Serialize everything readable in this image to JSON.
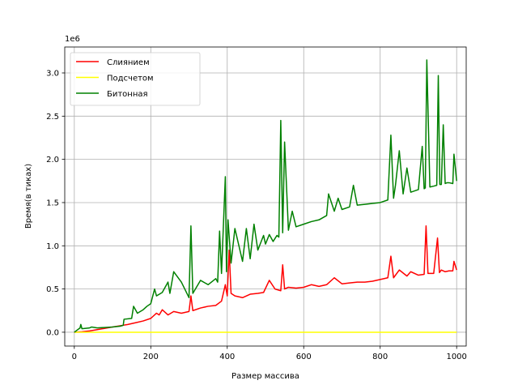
{
  "chart_data": {
    "type": "line",
    "title": "",
    "xlabel": "Размер массива",
    "ylabel": "Время(в тиках)",
    "y_offset_label": "1e6",
    "y_multiplier": 1000000,
    "xlim": [
      -25,
      1025
    ],
    "ylim": [
      -0.16,
      3.3
    ],
    "x_ticks": [
      0,
      200,
      400,
      600,
      800,
      1000
    ],
    "x_tick_labels": [
      "0",
      "200",
      "400",
      "600",
      "800",
      "1000"
    ],
    "y_ticks": [
      0.0,
      0.5,
      1.0,
      1.5,
      2.0,
      2.5,
      3.0
    ],
    "y_tick_labels": [
      "0.0",
      "0.5",
      "1.0",
      "1.5",
      "2.0",
      "2.5",
      "3.0"
    ],
    "grid": true,
    "legend_position": "upper-left",
    "series": [
      {
        "name": "Слиянием",
        "color": "#ff0000",
        "x": [
          0,
          20,
          40,
          60,
          80,
          100,
          120,
          140,
          160,
          180,
          200,
          215,
          222,
          230,
          245,
          260,
          280,
          300,
          305,
          310,
          330,
          350,
          370,
          385,
          395,
          400,
          405,
          410,
          420,
          440,
          460,
          480,
          495,
          510,
          525,
          540,
          545,
          550,
          560,
          580,
          600,
          620,
          640,
          660,
          680,
          700,
          720,
          740,
          760,
          780,
          800,
          820,
          828,
          835,
          850,
          870,
          880,
          900,
          915,
          920,
          925,
          940,
          950,
          955,
          960,
          970,
          980,
          990,
          993,
          1000
        ],
        "values": [
          0,
          0.005,
          0.015,
          0.03,
          0.045,
          0.06,
          0.075,
          0.09,
          0.11,
          0.13,
          0.16,
          0.22,
          0.2,
          0.26,
          0.2,
          0.24,
          0.22,
          0.24,
          0.42,
          0.25,
          0.28,
          0.3,
          0.31,
          0.36,
          0.55,
          0.42,
          0.95,
          0.45,
          0.42,
          0.4,
          0.44,
          0.45,
          0.46,
          0.6,
          0.5,
          0.48,
          0.78,
          0.5,
          0.52,
          0.51,
          0.52,
          0.55,
          0.53,
          0.55,
          0.63,
          0.56,
          0.57,
          0.58,
          0.58,
          0.59,
          0.61,
          0.63,
          0.88,
          0.63,
          0.72,
          0.65,
          0.7,
          0.66,
          0.67,
          1.23,
          0.68,
          0.68,
          1.09,
          0.69,
          0.72,
          0.7,
          0.71,
          0.71,
          0.82,
          0.72
        ]
      },
      {
        "name": "Подсчетом",
        "color": "#ffff00",
        "x": [
          0,
          1000
        ],
        "values": [
          0,
          0
        ]
      },
      {
        "name": "Битонная",
        "color": "#008000",
        "x": [
          0,
          15,
          17,
          20,
          40,
          45,
          60,
          100,
          120,
          128,
          130,
          150,
          155,
          165,
          180,
          190,
          200,
          210,
          215,
          230,
          245,
          250,
          260,
          280,
          300,
          305,
          310,
          330,
          350,
          370,
          375,
          380,
          385,
          395,
          398,
          402,
          410,
          420,
          440,
          450,
          460,
          470,
          480,
          495,
          500,
          510,
          520,
          530,
          535,
          540,
          545,
          550,
          560,
          570,
          580,
          600,
          620,
          640,
          660,
          665,
          680,
          690,
          700,
          720,
          730,
          740,
          760,
          780,
          800,
          820,
          828,
          835,
          840,
          850,
          860,
          870,
          880,
          900,
          910,
          915,
          918,
          922,
          930,
          940,
          948,
          952,
          956,
          960,
          965,
          970,
          975,
          980,
          990,
          993,
          1000
        ],
        "values": [
          0,
          0.05,
          0.09,
          0.04,
          0.05,
          0.06,
          0.05,
          0.06,
          0.07,
          0.08,
          0.15,
          0.16,
          0.3,
          0.22,
          0.26,
          0.3,
          0.33,
          0.5,
          0.42,
          0.46,
          0.58,
          0.45,
          0.7,
          0.58,
          0.4,
          1.23,
          0.45,
          0.6,
          0.55,
          0.62,
          0.58,
          1.17,
          0.68,
          1.8,
          0.7,
          1.3,
          0.8,
          1.2,
          0.82,
          1.2,
          0.85,
          1.25,
          0.95,
          1.12,
          1.02,
          1.13,
          1.05,
          1.12,
          1.1,
          2.45,
          1.15,
          2.2,
          1.18,
          1.4,
          1.22,
          1.25,
          1.28,
          1.3,
          1.35,
          1.6,
          1.4,
          1.55,
          1.42,
          1.45,
          1.7,
          1.47,
          1.48,
          1.49,
          1.5,
          1.53,
          2.28,
          1.55,
          1.7,
          2.1,
          1.6,
          1.9,
          1.62,
          1.65,
          2.15,
          1.66,
          1.67,
          3.15,
          1.68,
          1.69,
          1.7,
          2.97,
          1.71,
          1.71,
          2.4,
          1.72,
          1.73,
          1.73,
          1.72,
          2.06,
          1.75
        ]
      }
    ]
  }
}
